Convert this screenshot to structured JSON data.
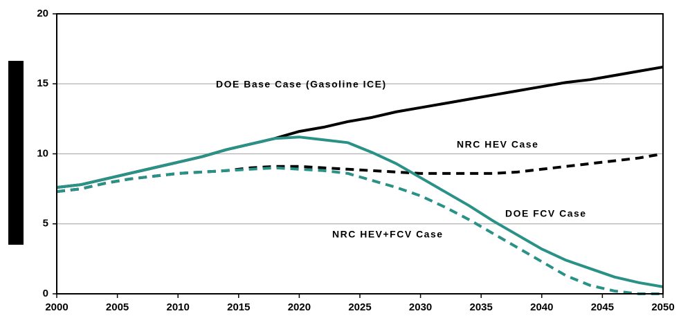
{
  "chart_data": {
    "type": "line",
    "x": [
      2000,
      2002,
      2004,
      2006,
      2008,
      2010,
      2012,
      2014,
      2016,
      2018,
      2020,
      2022,
      2024,
      2026,
      2028,
      2030,
      2032,
      2034,
      2036,
      2038,
      2040,
      2042,
      2044,
      2046,
      2048,
      2050
    ],
    "series": [
      {
        "name": "DOE Base Case (Gasoline ICE)",
        "color": "#000000",
        "dash": false,
        "values": [
          7.6,
          7.8,
          8.2,
          8.6,
          9.0,
          9.4,
          9.8,
          10.3,
          10.7,
          11.1,
          11.6,
          11.9,
          12.3,
          12.6,
          13.0,
          13.3,
          13.6,
          13.9,
          14.2,
          14.5,
          14.8,
          15.1,
          15.3,
          15.6,
          15.9,
          16.2
        ]
      },
      {
        "name": "NRC HEV Case",
        "color": "#000000",
        "dash": true,
        "values": [
          7.3,
          7.5,
          7.9,
          8.2,
          8.4,
          8.6,
          8.7,
          8.8,
          9.0,
          9.1,
          9.1,
          9.0,
          8.9,
          8.8,
          8.7,
          8.6,
          8.6,
          8.6,
          8.6,
          8.7,
          8.9,
          9.1,
          9.3,
          9.5,
          9.7,
          10.0
        ]
      },
      {
        "name": "NRC HEV+FCV Case",
        "color": "#2a9187",
        "dash": true,
        "values": [
          7.3,
          7.5,
          7.9,
          8.2,
          8.4,
          8.6,
          8.7,
          8.8,
          8.9,
          9.0,
          8.9,
          8.8,
          8.6,
          8.1,
          7.6,
          7.0,
          6.2,
          5.3,
          4.3,
          3.3,
          2.3,
          1.3,
          0.6,
          0.2,
          0.0,
          0.0
        ]
      },
      {
        "name": "DOE FCV Case",
        "color": "#2a9187",
        "dash": false,
        "values": [
          7.6,
          7.8,
          8.2,
          8.6,
          9.0,
          9.4,
          9.8,
          10.3,
          10.7,
          11.1,
          11.2,
          11.0,
          10.8,
          10.1,
          9.3,
          8.3,
          7.3,
          6.3,
          5.2,
          4.2,
          3.2,
          2.4,
          1.8,
          1.2,
          0.8,
          0.5
        ]
      }
    ],
    "xlim": [
      2000,
      2050
    ],
    "xticks": [
      2000,
      2005,
      2010,
      2015,
      2020,
      2025,
      2030,
      2035,
      2040,
      2045,
      2050
    ],
    "ylim": [
      0,
      20
    ],
    "yticks": [
      0,
      5,
      10,
      15,
      20
    ],
    "grid": true
  }
}
